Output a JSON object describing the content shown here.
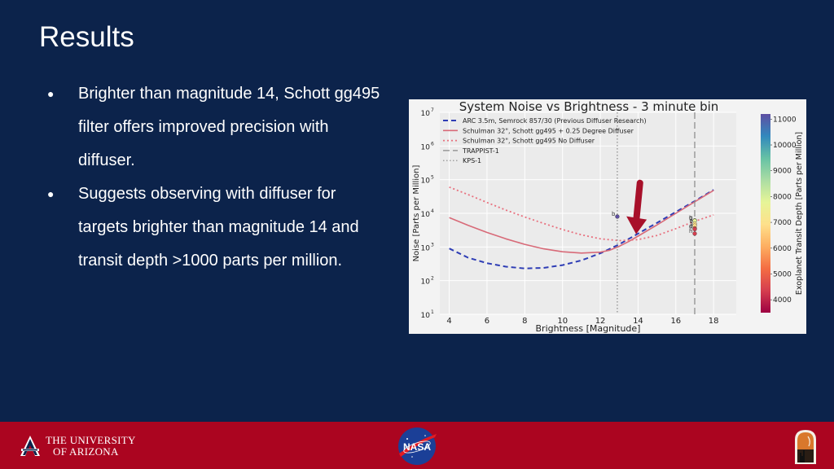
{
  "slide": {
    "title": "Results",
    "bullets": [
      "Brighter than magnitude 14, Schott gg495 filter offers improved precision with diffuser.",
      "Suggests observing with diffuser for targets brighter than magnitude 14 and transit depth >1000 parts per million."
    ],
    "bullet_glyph": "●"
  },
  "footer": {
    "university_line1": "THE UNIVERSITY",
    "university_line2": "OF ARIZONA",
    "ua_logo_letter": "A",
    "nasa_logo_text": "NASA",
    "background_color": "#ab0520"
  },
  "chart_data": {
    "type": "line",
    "title": "System Noise vs Brightness - 3 minute bin",
    "xlabel": "Brightness [Magnitude]",
    "ylabel": "Noise [Parts per Million]",
    "xlim": [
      3.5,
      19.2
    ],
    "ylim": [
      10,
      10000000
    ],
    "yscale": "log",
    "xticks": [
      4,
      6,
      8,
      10,
      12,
      14,
      16,
      18
    ],
    "yticks": [
      {
        "value": 10,
        "base": "10",
        "exp": "1"
      },
      {
        "value": 100,
        "base": "10",
        "exp": "2"
      },
      {
        "value": 1000,
        "base": "10",
        "exp": "3"
      },
      {
        "value": 10000,
        "base": "10",
        "exp": "4"
      },
      {
        "value": 100000,
        "base": "10",
        "exp": "5"
      },
      {
        "value": 1000000,
        "base": "10",
        "exp": "6"
      },
      {
        "value": 10000000,
        "base": "10",
        "exp": "7"
      }
    ],
    "grid": true,
    "legend_position": "top-left",
    "series": [
      {
        "name": "ARC 3.5m, Semrock 857/30 (Previous Diffuser Research)",
        "color": "#2e3db5",
        "dash": "6,4",
        "width": 2,
        "x": [
          4,
          5,
          6,
          7,
          8,
          9,
          10,
          11,
          12,
          13,
          14,
          15,
          16,
          17,
          18
        ],
        "y": [
          900,
          480,
          330,
          260,
          230,
          240,
          290,
          400,
          650,
          1200,
          2500,
          5200,
          11000,
          23000,
          50000
        ]
      },
      {
        "name": "Schulman 32\", Schott gg495 + 0.25 Degree Diffuser",
        "color": "#d86a78",
        "dash": "",
        "width": 1.6,
        "x": [
          4,
          5,
          6,
          7,
          8,
          9,
          10,
          11,
          12,
          12.5,
          13,
          13.5,
          14,
          15,
          16,
          17,
          18
        ],
        "y": [
          7500,
          4400,
          2700,
          1750,
          1200,
          880,
          720,
          660,
          700,
          800,
          1050,
          1450,
          2100,
          4500,
          10000,
          22000,
          48000
        ]
      },
      {
        "name": "Schulman 32\", Schott gg495 No Diffuser",
        "color": "#e8707e",
        "dash": "2,3",
        "width": 1.8,
        "x": [
          4,
          5,
          6,
          7,
          8,
          9,
          10,
          11,
          12,
          13,
          14,
          15,
          16,
          17,
          18
        ],
        "y": [
          60000,
          36000,
          21000,
          12500,
          7800,
          5000,
          3300,
          2300,
          1750,
          1550,
          1650,
          2200,
          3500,
          5800,
          9000
        ]
      },
      {
        "name": "TRAPPIST-1",
        "color": "#888888",
        "dash": "8,4",
        "width": 1.2,
        "vertical_x": 17.0
      },
      {
        "name": "KPS-1",
        "color": "#888888",
        "dash": "1.5,2.5",
        "width": 1.2,
        "vertical_x": 12.9
      }
    ],
    "points": [
      {
        "label": "b",
        "x": 12.9,
        "y": 8000,
        "depth": 10800
      },
      {
        "label": "g",
        "x": 17.0,
        "y": 6200,
        "depth": 7800
      },
      {
        "label": "b",
        "x": 17.0,
        "y": 6000,
        "depth": 7400
      },
      {
        "label": "c",
        "x": 17.0,
        "y": 4900,
        "depth": 7000
      },
      {
        "label": "f",
        "x": 17.0,
        "y": 4300,
        "depth": 6600
      },
      {
        "label": "e",
        "x": 17.0,
        "y": 3600,
        "depth": 5000
      },
      {
        "label": "d",
        "x": 17.0,
        "y": 3400,
        "depth": 4700
      },
      {
        "label": "h",
        "x": 17.0,
        "y": 2500,
        "depth": 4200
      }
    ],
    "colorbar": {
      "label": "Exoplanet Transit Depth [Parts per Million]",
      "min": 3500,
      "max": 11200,
      "ticks": [
        4000,
        5000,
        6000,
        7000,
        8000,
        9000,
        10000,
        11000
      ],
      "colors": [
        "#9e0142",
        "#d53e4f",
        "#f46d43",
        "#fdae61",
        "#fee08b",
        "#e6f598",
        "#abdda4",
        "#66c2a5",
        "#3288bd",
        "#5e4fa2"
      ]
    },
    "annotation_arrow": {
      "color": "#a8102a",
      "from": [
        14.1,
        80000
      ],
      "to": [
        13.9,
        2400
      ]
    }
  }
}
